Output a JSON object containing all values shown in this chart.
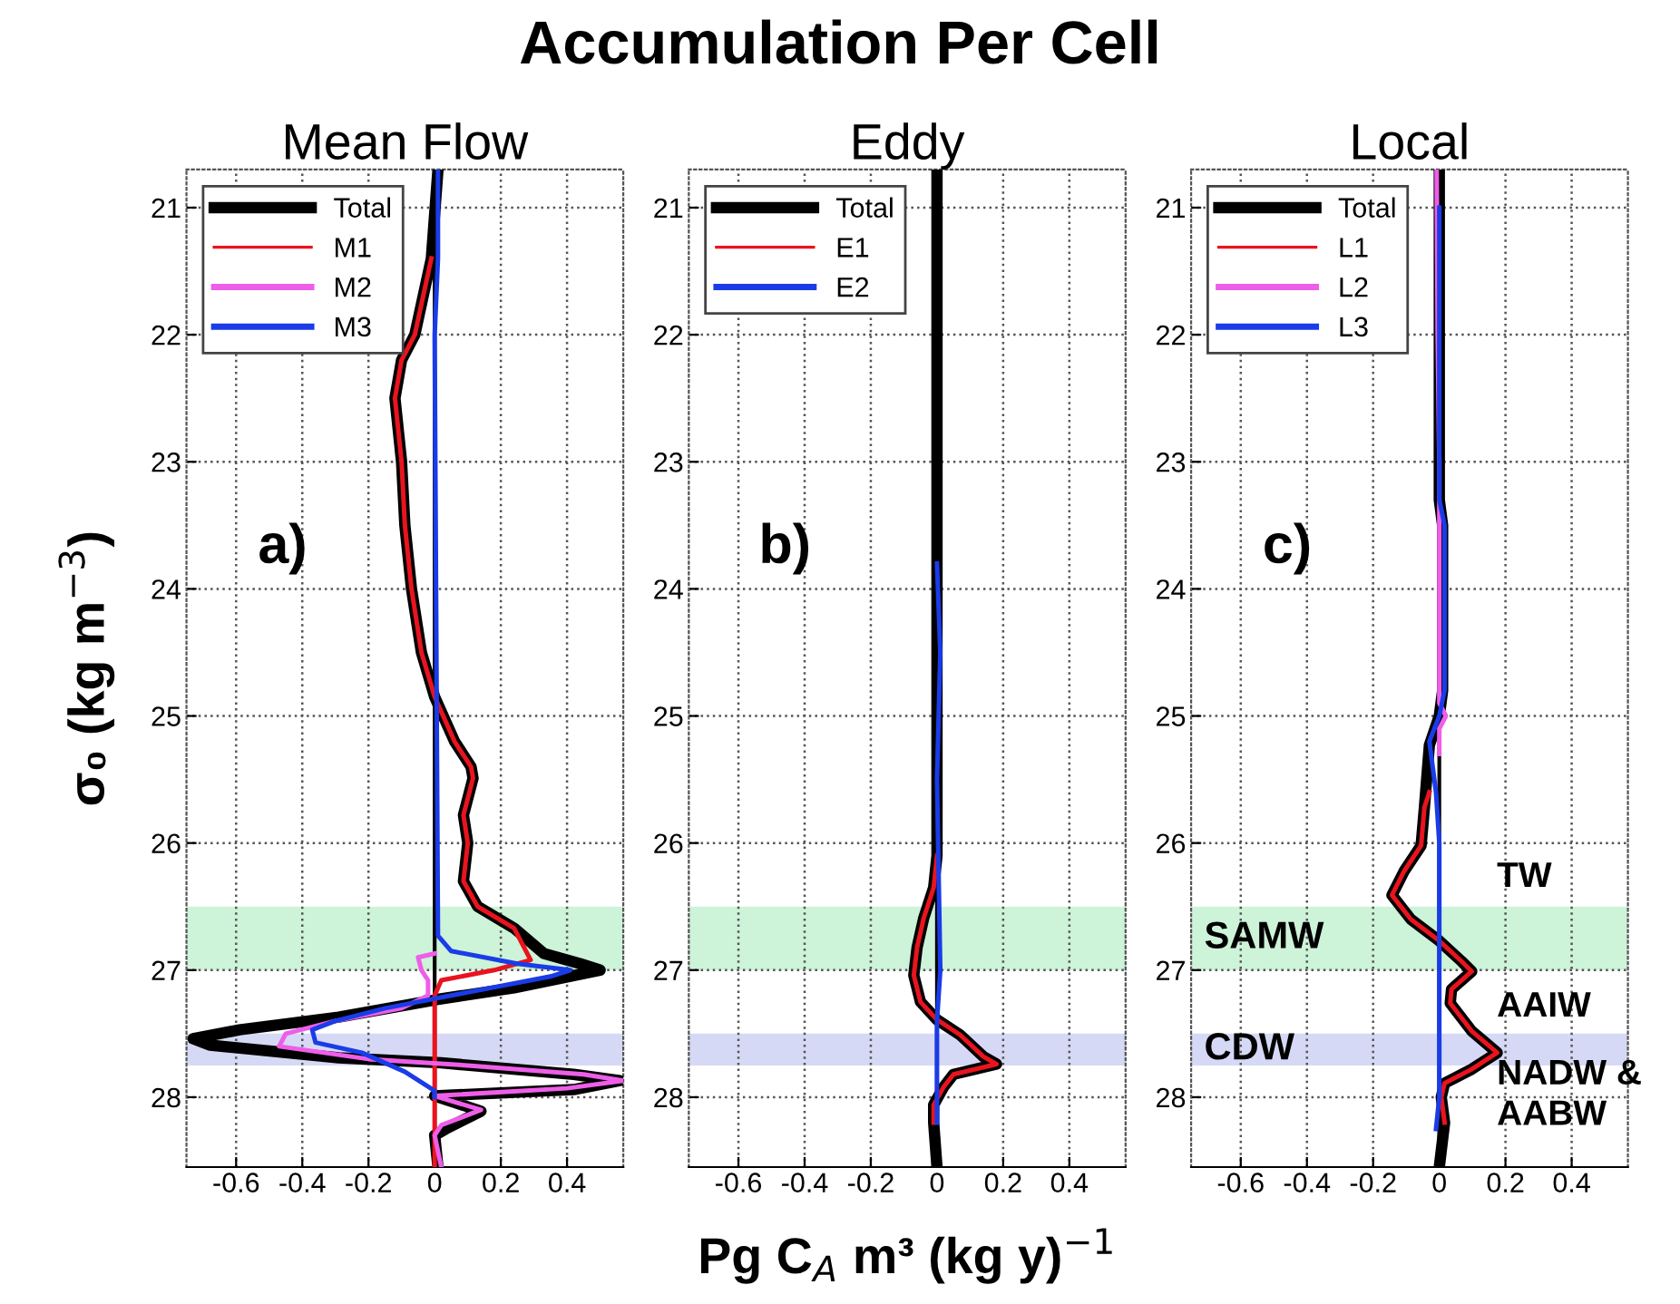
{
  "chart_data": [
    {
      "type": "line",
      "subtitle": "Mean Flow",
      "ylabel": "σ₀ (kg m$^{−3}$)",
      "annotations": [
        "a)"
      ],
      "xlim": [
        -0.75,
        0.57
      ],
      "ylim": [
        28.55,
        20.7
      ],
      "xticks": [
        -0.6,
        -0.4,
        -0.2,
        0,
        0.2,
        0.4
      ],
      "yticks": [
        21,
        22,
        23,
        24,
        25,
        26,
        27,
        28
      ],
      "grid": true,
      "legend": "top left",
      "ref_lines": [
        {
          "axis": "x",
          "value": 0,
          "color": "#000000"
        }
      ],
      "bands": [
        {
          "axis": "y",
          "from": 26.5,
          "to": 27.0,
          "color": "#cdf3d8"
        },
        {
          "axis": "y",
          "from": 27.5,
          "to": 27.75,
          "color": "#d6d9f5"
        }
      ],
      "series": [
        {
          "name": "Total",
          "color": "#000000",
          "x": [
            0.01,
            -0.01,
            -0.06,
            -0.1,
            -0.12,
            -0.1,
            -0.09,
            -0.07,
            -0.04,
            0,
            0.06,
            0.11,
            0.116,
            0.087,
            0.1,
            0.087,
            0.13,
            0.24,
            0.33,
            0.44,
            0.5,
            0.24,
            0.01,
            -0.29,
            -0.59,
            -0.73,
            -0.68,
            -0.29,
            0.02,
            0.42,
            0.56,
            0.42,
            0.0,
            0.14,
            0.04,
            0,
            0.01
          ],
          "values": [
            20.7,
            21.4,
            22.0,
            22.2,
            22.5,
            23.0,
            23.5,
            24.0,
            24.5,
            24.85,
            25.2,
            25.4,
            25.49,
            25.78,
            26.0,
            26.3,
            26.5,
            26.67,
            26.87,
            26.95,
            27.0,
            27.14,
            27.23,
            27.37,
            27.47,
            27.54,
            27.59,
            27.69,
            27.73,
            27.82,
            27.87,
            27.94,
            27.99,
            28.11,
            28.24,
            28.3,
            28.55
          ]
        },
        {
          "name": "M1",
          "color": "#e8141e",
          "x": [
            -0.01,
            -0.06,
            -0.1,
            -0.12,
            -0.1,
            -0.09,
            -0.07,
            -0.04,
            0,
            0.06,
            0.11,
            0.116,
            0.087,
            0.1,
            0.087,
            0.13,
            0.24,
            0.29,
            0.18,
            0.02,
            0,
            0
          ],
          "values": [
            21.4,
            22.0,
            22.2,
            22.5,
            23.0,
            23.5,
            24.0,
            24.5,
            24.85,
            25.2,
            25.4,
            25.49,
            25.78,
            26.0,
            26.3,
            26.5,
            26.67,
            26.92,
            27.0,
            27.08,
            27.2,
            28.55
          ]
        },
        {
          "name": "M2",
          "color": "#ee5ee8",
          "x": [
            0,
            -0.05,
            -0.04,
            -0.02,
            -0.02,
            -0.1,
            -0.3,
            -0.45,
            -0.47,
            -0.2,
            0.1,
            0.45,
            0.57,
            0.4,
            0.0,
            0.14,
            0.02,
            0,
            0.02
          ],
          "values": [
            26.87,
            26.9,
            27.0,
            27.08,
            27.2,
            27.3,
            27.4,
            27.5,
            27.6,
            27.7,
            27.75,
            27.82,
            27.87,
            27.93,
            27.99,
            28.1,
            28.22,
            28.3,
            28.55
          ]
        },
        {
          "name": "M3",
          "color": "#1a3ce8",
          "x": [
            0.01,
            0.01,
            0,
            0.01,
            0.05,
            0.25,
            0.41,
            0.35,
            0.05,
            -0.15,
            -0.3,
            -0.37,
            -0.36,
            -0.22,
            -0.09,
            0.0,
            0
          ],
          "values": [
            20.7,
            21.4,
            22.0,
            26.73,
            26.85,
            26.95,
            27.0,
            27.05,
            27.2,
            27.3,
            27.4,
            27.47,
            27.57,
            27.65,
            27.8,
            27.95,
            28.0
          ]
        }
      ]
    },
    {
      "type": "line",
      "title": "Accumulation Per Cell",
      "subtitle": "Eddy",
      "xlabel": "Pg C$_{A}$ m³ (kg y)$^{−1}$",
      "annotations": [
        "b)"
      ],
      "xlim": [
        -0.75,
        0.57
      ],
      "ylim": [
        28.55,
        20.7
      ],
      "xticks": [
        -0.6,
        -0.4,
        -0.2,
        0,
        0.2,
        0.4
      ],
      "yticks": [
        21,
        22,
        23,
        24,
        25,
        26,
        27,
        28
      ],
      "grid": true,
      "legend": "top left",
      "ref_lines": [
        {
          "axis": "x",
          "value": 0,
          "color": "#000000"
        }
      ],
      "bands": [
        {
          "axis": "y",
          "from": 26.5,
          "to": 27.0,
          "color": "#cdf3d8"
        },
        {
          "axis": "y",
          "from": 27.5,
          "to": 27.75,
          "color": "#d6d9f5"
        }
      ],
      "series": [
        {
          "name": "Total",
          "color": "#000000",
          "x": [
            0,
            0,
            -0.01,
            -0.04,
            -0.06,
            -0.07,
            -0.05,
            0,
            0.07,
            0.14,
            0.18,
            0.05,
            0.02,
            -0.01,
            -0.01,
            0
          ],
          "values": [
            20.7,
            26.1,
            26.35,
            26.59,
            26.82,
            27.04,
            27.25,
            27.39,
            27.51,
            27.68,
            27.74,
            27.82,
            27.92,
            28.06,
            28.2,
            28.55
          ]
        },
        {
          "name": "E1",
          "color": "#e8141e",
          "x": [
            0,
            -0.01,
            -0.04,
            -0.06,
            -0.07,
            -0.05,
            0,
            0.07,
            0.14,
            0.18,
            0.05,
            0.02,
            -0.01,
            -0.01
          ],
          "values": [
            26.1,
            26.35,
            26.59,
            26.82,
            27.04,
            27.25,
            27.39,
            27.51,
            27.68,
            27.74,
            27.82,
            27.92,
            28.06,
            28.2
          ]
        },
        {
          "name": "E2",
          "color": "#1a3ce8",
          "x": [
            0,
            0.01,
            0,
            0.01,
            0,
            0
          ],
          "values": [
            23.8,
            24.5,
            25.5,
            27.0,
            27.4,
            28.2
          ]
        }
      ]
    },
    {
      "type": "line",
      "subtitle": "Local",
      "annotations": [
        "c)",
        "TW",
        "AAIW",
        "NADW &\nAABW"
      ],
      "xlim": [
        -0.75,
        0.57
      ],
      "ylim": [
        28.55,
        20.7
      ],
      "xticks": [
        -0.6,
        -0.4,
        -0.2,
        0,
        0.2,
        0.4
      ],
      "yticks": [
        21,
        22,
        23,
        24,
        25,
        26,
        27,
        28
      ],
      "grid": true,
      "legend": "top left",
      "ref_lines": [
        {
          "axis": "x",
          "value": 0,
          "color": "#000000"
        }
      ],
      "bands": [
        {
          "axis": "y",
          "from": 26.5,
          "to": 27.0,
          "color": "#cdf3d8",
          "label": "SAMW"
        },
        {
          "axis": "y",
          "from": 27.5,
          "to": 27.75,
          "color": "#d6d9f5",
          "label": "CDW"
        }
      ],
      "series": [
        {
          "name": "Total",
          "color": "#000000",
          "x": [
            0,
            0,
            0.01,
            0.01,
            0,
            -0.03,
            -0.045,
            -0.055,
            -0.106,
            -0.143,
            -0.086,
            0,
            0.067,
            0.098,
            0.037,
            0.033,
            0.098,
            0.175,
            0.098,
            0.016,
            0.006,
            0.016,
            0
          ],
          "values": [
            20.7,
            23.3,
            23.5,
            24.8,
            25.0,
            25.23,
            25.72,
            26.02,
            26.22,
            26.41,
            26.6,
            26.77,
            26.93,
            27.01,
            27.15,
            27.26,
            27.48,
            27.65,
            27.78,
            27.89,
            28.0,
            28.2,
            28.55
          ]
        },
        {
          "name": "L1",
          "color": "#e8141e",
          "x": [
            -0.03,
            -0.045,
            -0.055,
            -0.106,
            -0.143,
            -0.086,
            0,
            0.067,
            0.098,
            0.037,
            0.033,
            0.098,
            0.175,
            0.098,
            0.016,
            0.006,
            0.016
          ],
          "values": [
            25.6,
            25.72,
            26.02,
            26.22,
            26.41,
            26.6,
            26.77,
            26.93,
            27.01,
            27.15,
            27.26,
            27.48,
            27.65,
            27.78,
            27.89,
            28.0,
            28.2
          ]
        },
        {
          "name": "L2",
          "color": "#ee5ee8",
          "x": [
            -0.008,
            -0.005,
            0,
            0,
            0.02,
            0,
            0
          ],
          "values": [
            20.7,
            22.0,
            23.0,
            24.9,
            25.0,
            25.1,
            25.3
          ]
        },
        {
          "name": "L3",
          "color": "#1a3ce8",
          "x": [
            0,
            0,
            0.016,
            0.016,
            0,
            -0.03,
            -0.01,
            0,
            0,
            -0.01
          ],
          "values": [
            21.0,
            23.3,
            23.5,
            24.8,
            25.0,
            25.2,
            25.6,
            26.0,
            28.0,
            28.25
          ]
        }
      ]
    }
  ]
}
